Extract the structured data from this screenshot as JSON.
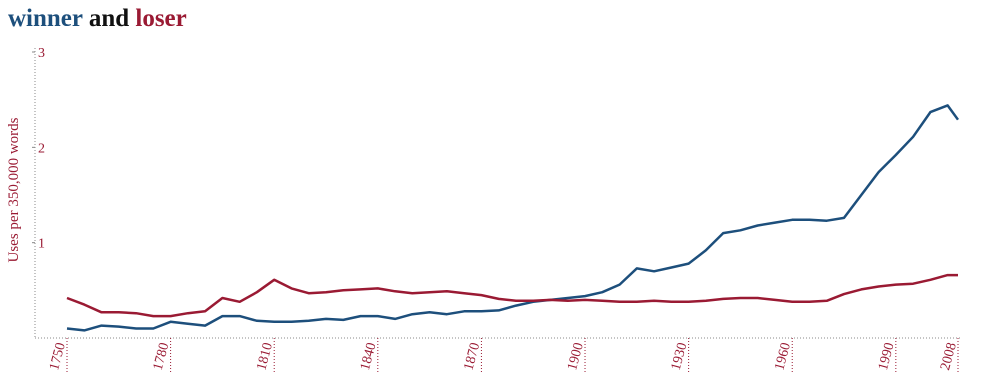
{
  "chart_data": {
    "type": "line",
    "title_join": "and",
    "y_label": "Uses per 350,000 words",
    "x": [
      1750,
      1755,
      1760,
      1765,
      1770,
      1775,
      1780,
      1785,
      1790,
      1795,
      1800,
      1805,
      1810,
      1815,
      1820,
      1825,
      1830,
      1835,
      1840,
      1845,
      1850,
      1855,
      1860,
      1865,
      1870,
      1875,
      1880,
      1885,
      1890,
      1895,
      1900,
      1905,
      1910,
      1915,
      1920,
      1925,
      1930,
      1935,
      1940,
      1945,
      1950,
      1955,
      1960,
      1965,
      1970,
      1975,
      1980,
      1985,
      1990,
      1995,
      2000,
      2005,
      2008
    ],
    "xlim": [
      1750,
      2008
    ],
    "xticks": [
      1750,
      1780,
      1810,
      1840,
      1870,
      1900,
      1930,
      1960,
      1990,
      2008
    ],
    "ylim": [
      0,
      3
    ],
    "yticks": [
      1,
      2,
      3
    ],
    "axis_color": "#9a1a33",
    "series": [
      {
        "name": "winner",
        "color": "#1d4f7c",
        "values": [
          0.1,
          0.08,
          0.13,
          0.12,
          0.1,
          0.1,
          0.17,
          0.15,
          0.13,
          0.23,
          0.23,
          0.18,
          0.17,
          0.17,
          0.18,
          0.2,
          0.19,
          0.23,
          0.23,
          0.2,
          0.25,
          0.27,
          0.25,
          0.28,
          0.28,
          0.29,
          0.34,
          0.38,
          0.4,
          0.42,
          0.44,
          0.48,
          0.56,
          0.73,
          0.7,
          0.74,
          0.78,
          0.92,
          1.1,
          1.13,
          1.18,
          1.21,
          1.24,
          1.24,
          1.23,
          1.26,
          1.5,
          1.74,
          1.92,
          2.11,
          2.37,
          2.44,
          2.29
        ]
      },
      {
        "name": "loser",
        "color": "#9a1a33",
        "values": [
          0.42,
          0.35,
          0.27,
          0.27,
          0.26,
          0.23,
          0.23,
          0.26,
          0.28,
          0.42,
          0.38,
          0.48,
          0.61,
          0.52,
          0.47,
          0.48,
          0.5,
          0.51,
          0.52,
          0.49,
          0.47,
          0.48,
          0.49,
          0.47,
          0.45,
          0.41,
          0.39,
          0.39,
          0.4,
          0.39,
          0.4,
          0.39,
          0.38,
          0.38,
          0.39,
          0.38,
          0.38,
          0.39,
          0.41,
          0.42,
          0.42,
          0.4,
          0.38,
          0.38,
          0.39,
          0.46,
          0.51,
          0.54,
          0.56,
          0.57,
          0.61,
          0.66,
          0.66
        ]
      }
    ]
  }
}
